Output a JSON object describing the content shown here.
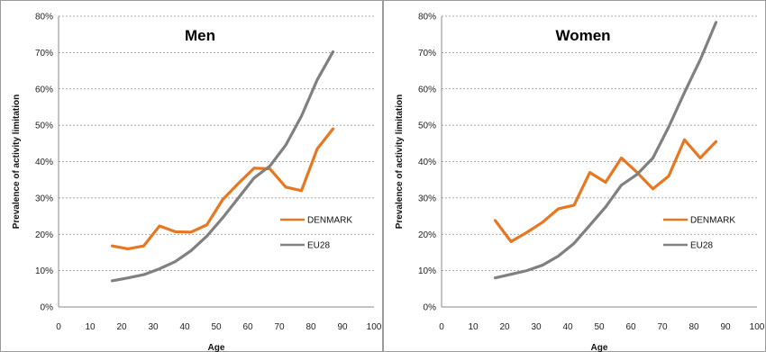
{
  "chart_data": [
    {
      "type": "line",
      "title": "Men",
      "xlabel": "Age",
      "ylabel": "Prevalence of activity limitation",
      "xlim": [
        0,
        100
      ],
      "ylim": [
        0,
        80
      ],
      "x_ticks": [
        0,
        10,
        20,
        30,
        40,
        50,
        60,
        70,
        80,
        90,
        100
      ],
      "y_ticks": [
        0,
        10,
        20,
        30,
        40,
        50,
        60,
        70,
        80
      ],
      "y_tick_suffix": "%",
      "grid": "horizontal-dashed",
      "legend_position": "right",
      "series": [
        {
          "name": "DENMARK",
          "color": "#E87722",
          "x": [
            17,
            22,
            27,
            32,
            37,
            42,
            47,
            52,
            57,
            62,
            67,
            72,
            77,
            82,
            87
          ],
          "y": [
            16.8,
            16.0,
            16.8,
            22.3,
            20.7,
            20.6,
            22.6,
            29.5,
            34.0,
            38.2,
            38.0,
            33.0,
            32.0,
            43.5,
            49.0
          ]
        },
        {
          "name": "EU28",
          "color": "#808080",
          "x": [
            17,
            22,
            27,
            32,
            37,
            42,
            47,
            52,
            57,
            62,
            67,
            72,
            77,
            82,
            87
          ],
          "y": [
            7.2,
            8.0,
            8.9,
            10.5,
            12.5,
            15.5,
            19.5,
            24.5,
            30.0,
            35.5,
            38.8,
            44.5,
            52.5,
            62.5,
            70.2
          ]
        }
      ]
    },
    {
      "type": "line",
      "title": "Women",
      "xlabel": "Age",
      "ylabel": "Prevalence of activity limitation",
      "xlim": [
        0,
        100
      ],
      "ylim": [
        0,
        80
      ],
      "x_ticks": [
        0,
        10,
        20,
        30,
        40,
        50,
        60,
        70,
        80,
        90,
        100
      ],
      "y_ticks": [
        0,
        10,
        20,
        30,
        40,
        50,
        60,
        70,
        80
      ],
      "y_tick_suffix": "%",
      "grid": "horizontal-dashed",
      "legend_position": "right",
      "series": [
        {
          "name": "DENMARK",
          "color": "#E87722",
          "x": [
            17,
            22,
            27,
            32,
            37,
            42,
            47,
            52,
            57,
            62,
            67,
            72,
            77,
            82,
            87
          ],
          "y": [
            23.8,
            18.0,
            20.5,
            23.3,
            27.0,
            28.0,
            37.0,
            34.3,
            41.0,
            37.0,
            32.5,
            36.0,
            46.0,
            41.0,
            45.5
          ]
        },
        {
          "name": "EU28",
          "color": "#808080",
          "x": [
            17,
            22,
            27,
            32,
            37,
            42,
            47,
            52,
            57,
            62,
            67,
            72,
            77,
            82,
            87
          ],
          "y": [
            8.0,
            9.0,
            10.0,
            11.5,
            14.0,
            17.5,
            22.5,
            27.5,
            33.5,
            36.5,
            41.0,
            49.5,
            59.0,
            68.0,
            78.3
          ]
        }
      ]
    }
  ]
}
